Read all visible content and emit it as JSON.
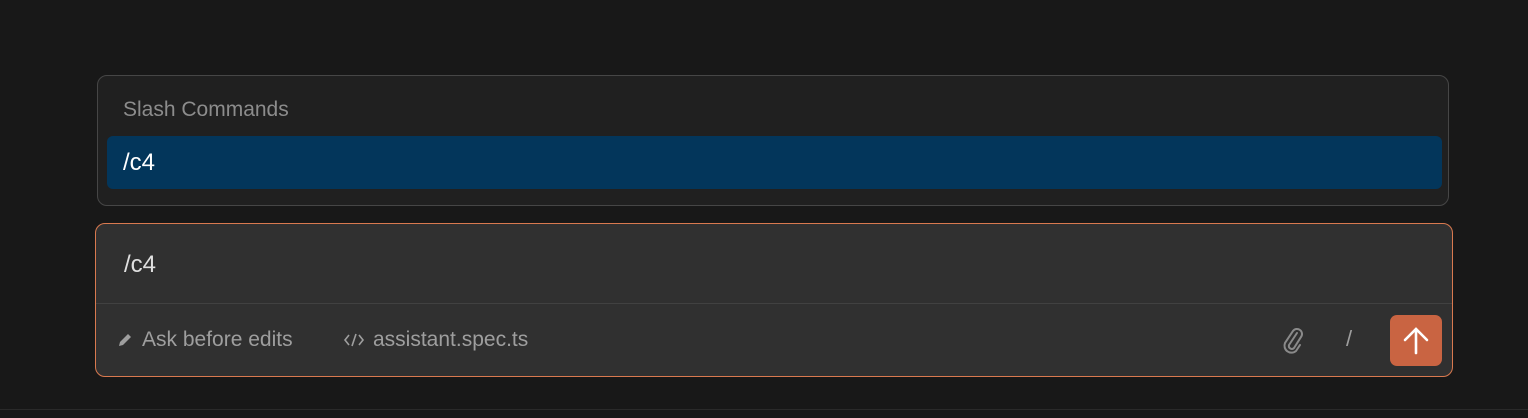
{
  "slash_menu": {
    "title": "Slash Commands",
    "items": [
      {
        "label": "/c4",
        "selected": true
      }
    ]
  },
  "composer": {
    "value": "/c4",
    "mode_label": "Ask before edits",
    "mode_icon": "pencil-icon",
    "context_file": "assistant.spec.ts",
    "context_icon": "code-icon",
    "slash_label": "/",
    "attach_icon": "paperclip-icon",
    "send_icon": "arrow-up-icon"
  },
  "colors": {
    "accent": "#c96442",
    "focus_border": "#d9794f",
    "selection": "#03365b"
  }
}
